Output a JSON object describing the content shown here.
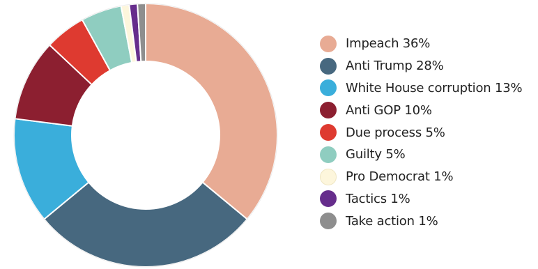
{
  "chart_data": {
    "type": "pie",
    "donut": true,
    "legend_position": "right",
    "slices": [
      {
        "label": "Impeach 36%",
        "category": "Impeach",
        "value": 36,
        "color": "#e8ab94"
      },
      {
        "label": "Anti Trump 28%",
        "category": "Anti Trump",
        "value": 28,
        "color": "#47687f"
      },
      {
        "label": "White House corruption 13%",
        "category": "White House corruption",
        "value": 13,
        "color": "#3aaedb"
      },
      {
        "label": "Anti GOP 10%",
        "category": "Anti GOP",
        "value": 10,
        "color": "#8c1f30"
      },
      {
        "label": "Due process 5%",
        "category": "Due process",
        "value": 5,
        "color": "#de3a30"
      },
      {
        "label": "Guilty 5%",
        "category": "Guilty",
        "value": 5,
        "color": "#8fcdc0"
      },
      {
        "label": "Pro Democrat 1%",
        "category": "Pro Democrat",
        "value": 1,
        "color": "#fdf6dc"
      },
      {
        "label": "Tactics 1%",
        "category": "Tactics",
        "value": 1,
        "color": "#662d8c"
      },
      {
        "label": "Take action 1%",
        "category": "Take action",
        "value": 1,
        "color": "#8e8e8e"
      }
    ]
  }
}
